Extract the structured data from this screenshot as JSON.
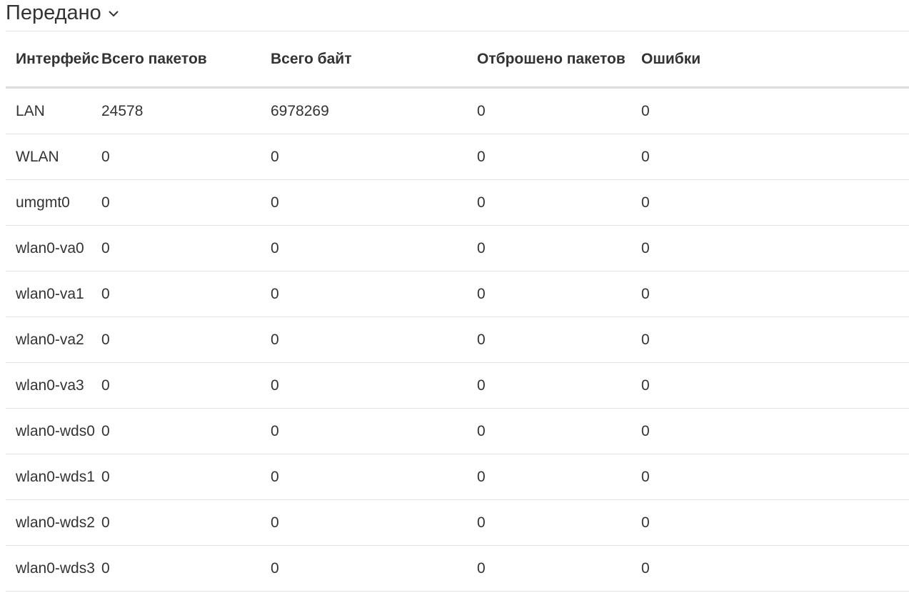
{
  "section": {
    "title": "Передано",
    "toggle_icon": "chevron-down-icon"
  },
  "table": {
    "columns": [
      "Интерфейс",
      "Всего пакетов",
      "Всего байт",
      "Отброшено пакетов",
      "Ошибки"
    ],
    "rows": [
      [
        "LAN",
        "24578",
        "6978269",
        "0",
        "0"
      ],
      [
        "WLAN",
        "0",
        "0",
        "0",
        "0"
      ],
      [
        "umgmt0",
        "0",
        "0",
        "0",
        "0"
      ],
      [
        "wlan0-va0",
        "0",
        "0",
        "0",
        "0"
      ],
      [
        "wlan0-va1",
        "0",
        "0",
        "0",
        "0"
      ],
      [
        "wlan0-va2",
        "0",
        "0",
        "0",
        "0"
      ],
      [
        "wlan0-va3",
        "0",
        "0",
        "0",
        "0"
      ],
      [
        "wlan0-wds0",
        "0",
        "0",
        "0",
        "0"
      ],
      [
        "wlan0-wds1",
        "0",
        "0",
        "0",
        "0"
      ],
      [
        "wlan0-wds2",
        "0",
        "0",
        "0",
        "0"
      ],
      [
        "wlan0-wds3",
        "0",
        "0",
        "0",
        "0"
      ]
    ]
  }
}
